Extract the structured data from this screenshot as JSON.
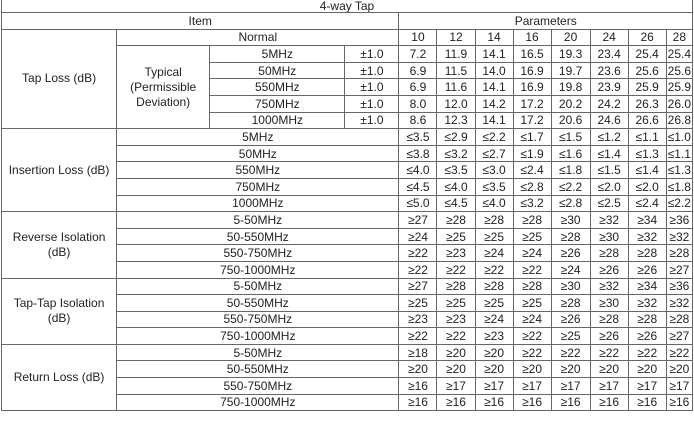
{
  "title": "4-way    Tap",
  "header": {
    "item": "Item",
    "parameters": "Parameters",
    "normal": "Normal"
  },
  "nominal": [
    "10",
    "12",
    "14",
    "16",
    "20",
    "24",
    "26",
    "28"
  ],
  "tap_loss": {
    "label": "Tap Loss (dB)",
    "sub_label": "Typical (Permissible Deviation)",
    "rows": [
      {
        "freq": "5MHz",
        "dev": "±1.0",
        "values": [
          "7.2",
          "11.9",
          "14.1",
          "16.5",
          "19.3",
          "23.4",
          "25.4",
          "25.4"
        ]
      },
      {
        "freq": "50MHz",
        "dev": "±1.0",
        "values": [
          "6.9",
          "11.5",
          "14.0",
          "16.9",
          "19.7",
          "23.6",
          "25.6",
          "25.6"
        ]
      },
      {
        "freq": "550MHz",
        "dev": "±1.0",
        "values": [
          "6.9",
          "11.6",
          "14.1",
          "16.9",
          "19.8",
          "23.9",
          "25.9",
          "25.9"
        ]
      },
      {
        "freq": "750MHz",
        "dev": "±1.0",
        "values": [
          "8.0",
          "12.0",
          "14.2",
          "17.2",
          "20.2",
          "24.2",
          "26.3",
          "26.0"
        ]
      },
      {
        "freq": "1000MHz",
        "dev": "±1.0",
        "values": [
          "8.6",
          "12.3",
          "14.1",
          "17.2",
          "20.6",
          "24.6",
          "26.6",
          "26.8"
        ]
      }
    ]
  },
  "groups": [
    {
      "label": "Insertion Loss (dB)",
      "rows": [
        {
          "freq": "5MHz",
          "values": [
            "≤3.5",
            "≤2.9",
            "≤2.2",
            "≤1.7",
            "≤1.5",
            "≤1.2",
            "≤1.1",
            "≤1.0"
          ]
        },
        {
          "freq": "50MHz",
          "values": [
            "≤3.8",
            "≤3.2",
            "≤2.7",
            "≤1.9",
            "≤1.6",
            "≤1.4",
            "≤1.3",
            "≤1.1"
          ]
        },
        {
          "freq": "550MHz",
          "values": [
            "≤4.0",
            "≤3.5",
            "≤3.0",
            "≤2.4",
            "≤1.8",
            "≤1.5",
            "≤1.4",
            "≤1.3"
          ]
        },
        {
          "freq": "750MHz",
          "values": [
            "≤4.5",
            "≤4.0",
            "≤3.5",
            "≤2.8",
            "≤2.2",
            "≤2.0",
            "≤2.0",
            "≤1.8"
          ]
        },
        {
          "freq": "1000MHz",
          "values": [
            "≤5.0",
            "≤4.5",
            "≤4.0",
            "≤3.2",
            "≤2.8",
            "≤2.5",
            "≤2.4",
            "≤2.2"
          ]
        }
      ]
    },
    {
      "label": "Reverse Isolation (dB)",
      "rows": [
        {
          "freq": "5-50MHz",
          "values": [
            "≥27",
            "≥28",
            "≥28",
            "≥28",
            "≥30",
            "≥32",
            "≥34",
            "≥36"
          ]
        },
        {
          "freq": "50-550MHz",
          "values": [
            "≥24",
            "≥25",
            "≥25",
            "≥25",
            "≥28",
            "≥30",
            "≥32",
            "≥32"
          ]
        },
        {
          "freq": "550-750MHz",
          "values": [
            "≥22",
            "≥23",
            "≥24",
            "≥24",
            "≥26",
            "≥28",
            "≥28",
            "≥28"
          ]
        },
        {
          "freq": "750-1000MHz",
          "values": [
            "≥22",
            "≥22",
            "≥22",
            "≥22",
            "≥24",
            "≥26",
            "≥26",
            "≥27"
          ]
        }
      ]
    },
    {
      "label": "Tap-Tap Isolation (dB)",
      "rows": [
        {
          "freq": "5-50MHz",
          "values": [
            "≥27",
            "≥28",
            "≥28",
            "≥28",
            "≥30",
            "≥32",
            "≥34",
            "≥36"
          ]
        },
        {
          "freq": "50-550MHz",
          "values": [
            "≥25",
            "≥25",
            "≥25",
            "≥25",
            "≥28",
            "≥30",
            "≥32",
            "≥32"
          ]
        },
        {
          "freq": "550-750MHz",
          "values": [
            "≥23",
            "≥23",
            "≥24",
            "≥24",
            "≥26",
            "≥28",
            "≥28",
            "≥28"
          ]
        },
        {
          "freq": "750-1000MHz",
          "values": [
            "≥22",
            "≥22",
            "≥23",
            "≥22",
            "≥25",
            "≥26",
            "≥26",
            "≥27"
          ]
        }
      ]
    },
    {
      "label": "Return Loss (dB)",
      "rows": [
        {
          "freq": "5-50MHz",
          "values": [
            "≥18",
            "≥20",
            "≥20",
            "≥22",
            "≥22",
            "≥22",
            "≥22",
            "≥22"
          ]
        },
        {
          "freq": "50-550MHz",
          "values": [
            "≥20",
            "≥20",
            "≥20",
            "≥20",
            "≥20",
            "≥20",
            "≥20",
            "≥20"
          ]
        },
        {
          "freq": "550-750MHz",
          "values": [
            "≥16",
            "≥17",
            "≥17",
            "≥17",
            "≥17",
            "≥17",
            "≥17",
            "≥17"
          ]
        },
        {
          "freq": "750-1000MHz",
          "values": [
            "≥16",
            "≥16",
            "≥16",
            "≥16",
            "≥16",
            "≥16",
            "≥16",
            "≥16"
          ]
        }
      ]
    }
  ]
}
